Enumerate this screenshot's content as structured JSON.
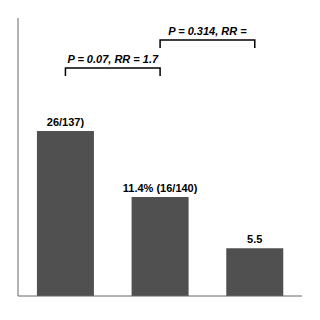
{
  "chart_data": {
    "type": "bar",
    "categories": [
      null,
      null,
      null
    ],
    "values": [
      19.0,
      11.4,
      5.5
    ],
    "color": "#505050",
    "ylim": [
      0,
      32
    ],
    "tick_labels": false,
    "annotations": [
      "26/137)",
      "11.4% (16/140)",
      "5.5",
      "P = 0.07, RR = 1.7",
      "P = 0.314, RR ="
    ]
  }
}
